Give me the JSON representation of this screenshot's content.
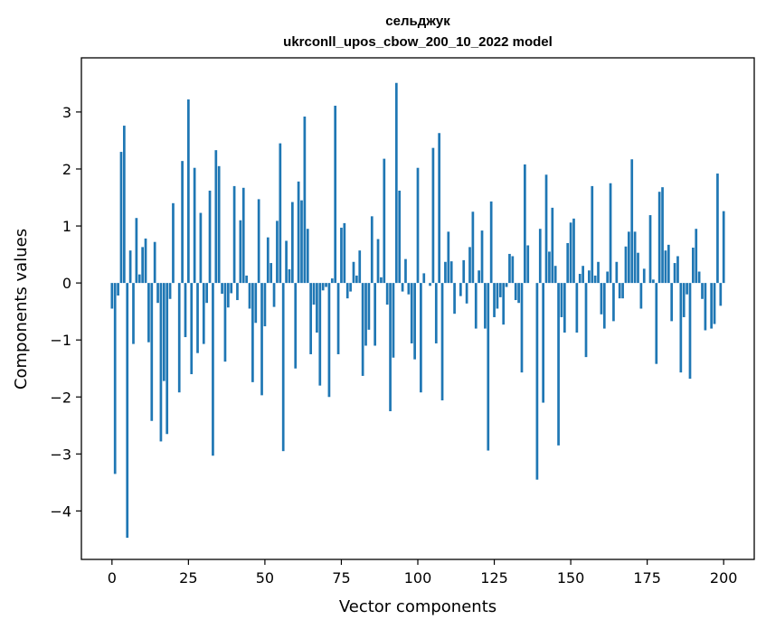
{
  "chart_data": {
    "type": "bar",
    "title": "сельджук",
    "subtitle": "ukrconll_upos_cbow_200_10_2022 model",
    "xlabel": "Vector components",
    "ylabel": "Components values",
    "xlim": [
      -10,
      210
    ],
    "ylim": [
      -4.85,
      3.95
    ],
    "xticks": [
      0,
      25,
      50,
      75,
      100,
      125,
      150,
      175,
      200
    ],
    "yticks": [
      -4,
      -3,
      -2,
      -1,
      0,
      1,
      2,
      3
    ],
    "bar_color": "#1f77b4",
    "grid": false,
    "values": [
      -0.45,
      -3.35,
      -0.22,
      2.3,
      2.76,
      -4.47,
      0.57,
      -1.07,
      1.14,
      0.15,
      0.63,
      0.78,
      -1.04,
      -2.42,
      0.72,
      -0.35,
      -2.78,
      -1.72,
      -2.65,
      -0.28,
      1.4,
      0.0,
      -1.92,
      2.14,
      -0.95,
      3.22,
      -1.6,
      2.02,
      -1.23,
      1.23,
      -1.07,
      -0.35,
      1.62,
      -3.03,
      2.33,
      2.05,
      -0.19,
      -1.38,
      -0.43,
      -0.18,
      1.7,
      -0.3,
      1.1,
      1.67,
      0.13,
      -0.45,
      -1.74,
      -0.7,
      1.47,
      -1.97,
      -0.76,
      0.8,
      0.35,
      -0.42,
      1.09,
      2.45,
      -2.95,
      0.74,
      0.24,
      1.42,
      -1.5,
      1.78,
      1.45,
      2.92,
      0.95,
      -1.25,
      -0.38,
      -0.87,
      -1.8,
      -0.13,
      -0.07,
      -2.0,
      0.08,
      3.11,
      -1.25,
      0.97,
      1.05,
      -0.27,
      -0.15,
      0.37,
      0.13,
      0.57,
      -1.63,
      -1.1,
      -0.82,
      1.17,
      -1.1,
      0.77,
      0.1,
      2.18,
      -0.38,
      -2.25,
      -1.31,
      3.51,
      1.62,
      -0.15,
      0.42,
      -0.2,
      -1.06,
      -1.34,
      2.02,
      -1.92,
      0.17,
      0.0,
      -0.05,
      2.37,
      -1.06,
      2.63,
      -2.06,
      0.37,
      0.9,
      0.38,
      -0.54,
      0.0,
      -0.23,
      0.4,
      -0.36,
      0.63,
      1.25,
      -0.8,
      0.22,
      0.92,
      -0.8,
      -2.94,
      1.43,
      -0.6,
      -0.45,
      -0.25,
      -0.73,
      -0.07,
      0.51,
      0.47,
      -0.3,
      -0.35,
      -1.57,
      2.08,
      0.66,
      0.0,
      0.0,
      -3.45,
      0.95,
      -2.1,
      1.9,
      0.55,
      1.32,
      0.3,
      -2.85,
      -0.6,
      -0.87,
      0.7,
      1.06,
      1.13,
      -0.87,
      0.16,
      0.3,
      -1.3,
      0.22,
      1.7,
      0.13,
      0.37,
      -0.55,
      -0.8,
      0.2,
      1.75,
      -0.67,
      0.37,
      -0.27,
      -0.27,
      0.64,
      0.9,
      2.17,
      0.9,
      0.53,
      -0.45,
      0.25,
      0.0,
      1.19,
      0.06,
      -1.42,
      1.6,
      1.68,
      0.57,
      0.67,
      -0.67,
      0.35,
      0.47,
      -1.57,
      -0.6,
      -0.2,
      -1.68,
      0.62,
      0.95,
      0.2,
      -0.28,
      -0.83,
      0.0,
      -0.8,
      -0.72,
      1.92,
      -0.4,
      1.26
    ]
  }
}
